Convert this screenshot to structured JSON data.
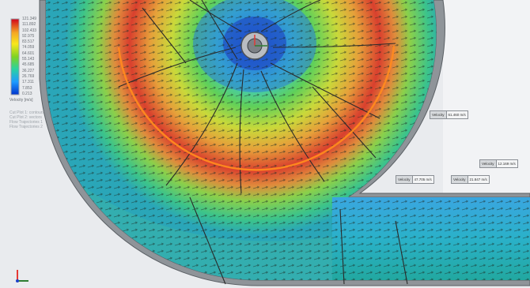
{
  "legend": {
    "ticks": [
      "121.349",
      "111.892",
      "102.433",
      "92.975",
      "83.517",
      "74.059",
      "64.601",
      "55.143",
      "45.685",
      "36.227",
      "26.769",
      "17.311",
      "7.853",
      "0.213"
    ],
    "unit": "Velocity [m/s]",
    "colors": [
      "#d0021b",
      "#f5a623",
      "#f8e71c",
      "#7ed321",
      "#2bd3a0",
      "#1e9bff",
      "#0033cc"
    ]
  },
  "info": {
    "lines": [
      "Cut Plot 1: contours",
      "Cut Plot 2: vectors",
      "Flow Trajectories 1",
      "Flow Trajectories 2"
    ]
  },
  "probes": [
    {
      "key": "Velocity",
      "value": "61.460 m/s"
    },
    {
      "key": "Velocity",
      "value": "47.705 m/s"
    },
    {
      "key": "Velocity",
      "value": "21.847 m/s"
    },
    {
      "key": "Velocity",
      "value": "12.169 m/s"
    }
  ]
}
